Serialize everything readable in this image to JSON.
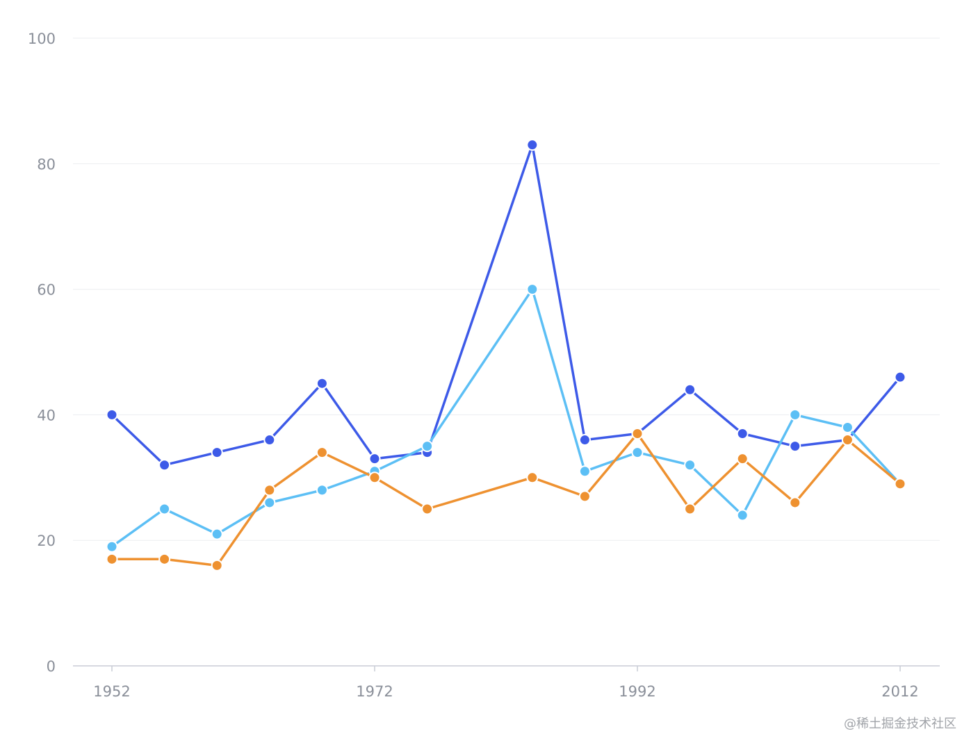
{
  "chart_data": {
    "type": "line",
    "title": "",
    "xlabel": "",
    "ylabel": "",
    "x": [
      1952,
      1956,
      1960,
      1964,
      1968,
      1972,
      1976,
      1984,
      1988,
      1992,
      1996,
      2000,
      2004,
      2008,
      2012
    ],
    "x_ticks": [
      "1952",
      "1972",
      "1992",
      "2012"
    ],
    "x_tick_values": [
      1952,
      1972,
      1992,
      2012
    ],
    "ylim": [
      0,
      100
    ],
    "y_ticks": [
      "0",
      "20",
      "40",
      "60",
      "80",
      "100"
    ],
    "y_tick_values": [
      0,
      20,
      40,
      60,
      80,
      100
    ],
    "grid": "horizontal",
    "legend": "none",
    "series": [
      {
        "color": "#3d5ae8",
        "values": [
          40,
          32,
          34,
          36,
          45,
          33,
          34,
          83,
          36,
          37,
          44,
          37,
          35,
          36,
          46
        ]
      },
      {
        "color": "#5cbff5",
        "values": [
          19,
          25,
          21,
          26,
          28,
          31,
          35,
          60,
          31,
          34,
          32,
          24,
          40,
          38,
          29
        ]
      },
      {
        "color": "#ee9130",
        "values": [
          17,
          17,
          16,
          28,
          34,
          30,
          25,
          30,
          27,
          37,
          25,
          33,
          26,
          36,
          29
        ]
      }
    ]
  },
  "watermark": "@稀土掘金技术社区"
}
